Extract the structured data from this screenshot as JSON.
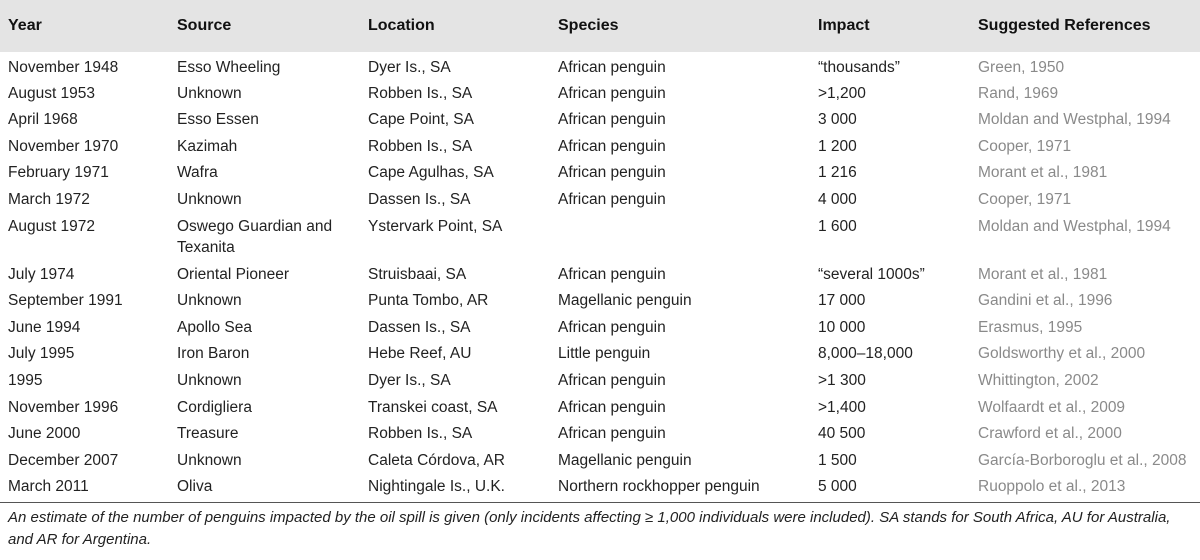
{
  "table": {
    "headers": [
      "Year",
      "Source",
      "Location",
      "Species",
      "Impact",
      "Suggested References"
    ],
    "rows": [
      [
        "November 1948",
        "Esso Wheeling",
        "Dyer Is., SA",
        "African penguin",
        "“thousands”",
        "Green, 1950"
      ],
      [
        "August 1953",
        "Unknown",
        "Robben Is., SA",
        "African penguin",
        ">1,200",
        "Rand, 1969"
      ],
      [
        "April 1968",
        "Esso Essen",
        "Cape Point, SA",
        "African penguin",
        "3 000",
        "Moldan and Westphal, 1994"
      ],
      [
        "November 1970",
        "Kazimah",
        "Robben Is., SA",
        "African penguin",
        "1 200",
        "Cooper, 1971"
      ],
      [
        "February 1971",
        "Wafra",
        "Cape Agulhas, SA",
        "African penguin",
        "1 216",
        "Morant et al., 1981"
      ],
      [
        "March 1972",
        "Unknown",
        "Dassen Is., SA",
        "African penguin",
        "4 000",
        "Cooper, 1971"
      ],
      [
        "August 1972",
        "Oswego Guardian and Texanita",
        "Ystervark Point, SA",
        "",
        "1 600",
        "Moldan and Westphal, 1994"
      ],
      [
        "July 1974",
        "Oriental Pioneer",
        "Struisbaai, SA",
        "African penguin",
        "“several 1000s”",
        "Morant et al., 1981"
      ],
      [
        "September 1991",
        "Unknown",
        "Punta Tombo, AR",
        "Magellanic penguin",
        "17 000",
        "Gandini et al., 1996"
      ],
      [
        "June 1994",
        "Apollo Sea",
        "Dassen Is., SA",
        "African penguin",
        "10 000",
        "Erasmus, 1995"
      ],
      [
        "July 1995",
        "Iron Baron",
        "Hebe Reef, AU",
        "Little penguin",
        "8,000–18,000",
        "Goldsworthy et al., 2000"
      ],
      [
        "1995",
        "Unknown",
        "Dyer Is., SA",
        "African penguin",
        ">1 300",
        "Whittington, 2002"
      ],
      [
        "November 1996",
        "Cordigliera",
        "Transkei coast, SA",
        "African penguin",
        ">1,400",
        "Wolfaardt et al., 2009"
      ],
      [
        "June 2000",
        "Treasure",
        "Robben Is., SA",
        "African penguin",
        "40 500",
        "Crawford et al., 2000"
      ],
      [
        "December 2007",
        "Unknown",
        "Caleta Córdova, AR",
        "Magellanic penguin",
        "1 500",
        "García-Borboroglu et al., 2008"
      ],
      [
        "March 2011",
        "Oliva",
        "Nightingale Is., U.K.",
        "Northern rockhopper penguin",
        "5 000",
        "Ruoppolo et al., 2013"
      ]
    ]
  },
  "footnote": "An estimate of the number of penguins impacted by the oil spill is given (only incidents affecting ≥ 1,000 individuals were included). SA stands for South Africa, AU for Australia, and AR for Argentina."
}
